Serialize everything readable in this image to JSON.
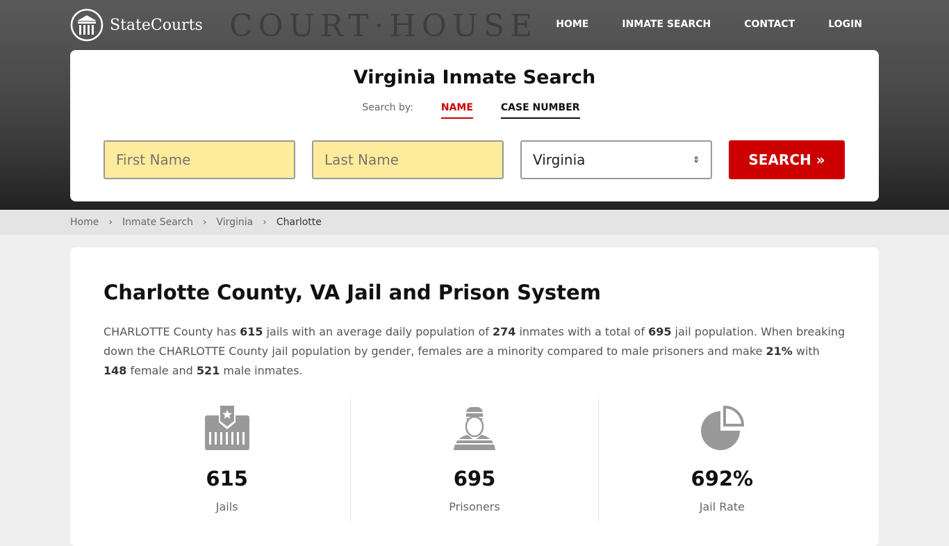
{
  "hero_bg_text": "COURT·HOUSE",
  "brand": "StateCourts",
  "nav": [
    "HOME",
    "INMATE SEARCH",
    "CONTACT",
    "LOGIN"
  ],
  "search": {
    "title": "Virginia Inmate Search",
    "search_by": "Search by:",
    "tabs": [
      "NAME",
      "CASE NUMBER"
    ],
    "first_placeholder": "First Name",
    "last_placeholder": "Last Name",
    "state": "Virginia",
    "button": "SEARCH »"
  },
  "breadcrumb": [
    "Home",
    "Inmate Search",
    "Virginia",
    "Charlotte"
  ],
  "main": {
    "title": "Charlotte County, VA Jail and Prison System",
    "p": [
      "CHARLOTTE County has ",
      "615",
      " jails with an average daily population of ",
      "274",
      " inmates with a total of ",
      "695",
      " jail population. When breaking down the CHARLOTTE County jail population by gender, females are a minority compared to male prisoners and make ",
      "21%",
      " with ",
      "148",
      " female and ",
      "521",
      " male inmates."
    ],
    "stats": [
      {
        "value": "615",
        "label": "Jails",
        "icon": "jail-icon"
      },
      {
        "value": "695",
        "label": "Prisoners",
        "icon": "prisoner-icon"
      },
      {
        "value": "692%",
        "label": "Jail Rate",
        "icon": "pie-chart-icon"
      }
    ]
  },
  "colors": {
    "accent": "#cc0000",
    "input_bg": "#ffeb9c"
  }
}
